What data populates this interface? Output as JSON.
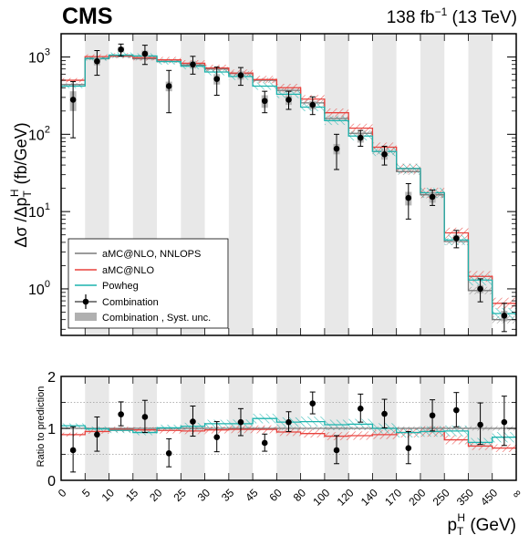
{
  "header": {
    "experiment": "CMS",
    "lumi_prefix": "138 fb",
    "lumi_exp": "−1",
    "lumi_suffix": " (13 TeV)"
  },
  "colors": {
    "nnlops": "#7a7a7a",
    "amcnlo": "#e8413c",
    "powheg": "#1bb3ad",
    "data": "#000000",
    "syst_band": "#b0b0b0",
    "vband": "#e8e8e8"
  },
  "chart_data": [
    {
      "type": "line",
      "panel": "main",
      "scale": "log",
      "ylim": [
        0.25,
        2000
      ],
      "ylabel_parts": [
        "Δσ /Δp",
        "T",
        "H",
        " (fb/GeV)"
      ],
      "yticks": [
        {
          "value": 1000,
          "label": "10",
          "exp": "3"
        },
        {
          "value": 100,
          "label": "10",
          "exp": "2"
        },
        {
          "value": 10,
          "label": "10",
          "exp": "1"
        },
        {
          "value": 1,
          "label": "10",
          "exp": "0"
        }
      ],
      "xtick_labels": [
        "0",
        "5",
        "10",
        "15",
        "20",
        "25",
        "30",
        "35",
        "45",
        "60",
        "80",
        "100",
        "120",
        "140",
        "170",
        "200",
        "250",
        "350",
        "450",
        "∞"
      ],
      "nbins": 19,
      "series": [
        {
          "name": "aMC@NLO, NNLOPS",
          "key": "nnlops",
          "values": [
            440,
            950,
            1020,
            950,
            880,
            790,
            700,
            610,
            500,
            370,
            255,
            160,
            103,
            60,
            33,
            16.5,
            4.1,
            0.95,
            0.4
          ]
        },
        {
          "name": "aMC@NLO",
          "key": "amcnlo",
          "values": [
            500,
            1010,
            1040,
            980,
            920,
            830,
            720,
            620,
            510,
            400,
            285,
            190,
            120,
            68,
            36,
            17.5,
            5.3,
            1.45,
            0.65
          ]
        },
        {
          "name": "Powheg",
          "key": "powheg",
          "values": [
            420,
            960,
            1060,
            1030,
            870,
            760,
            640,
            560,
            420,
            330,
            225,
            150,
            95,
            60,
            36,
            17.5,
            4.3,
            1.3,
            0.48
          ]
        }
      ],
      "data_points": {
        "name": "Combination",
        "values": [
          280,
          880,
          1250,
          1100,
          420,
          800,
          520,
          580,
          270,
          280,
          240,
          65,
          90,
          55,
          15,
          15.5,
          4.5,
          1.0,
          0.45
        ],
        "err_low": [
          190,
          300,
          220,
          300,
          230,
          200,
          200,
          150,
          80,
          70,
          60,
          30,
          20,
          15,
          7,
          3.5,
          1.1,
          0.32,
          0.17
        ],
        "err_high": [
          200,
          330,
          220,
          320,
          250,
          220,
          220,
          150,
          90,
          80,
          65,
          35,
          22,
          15,
          8,
          3.5,
          1.2,
          0.35,
          0.2
        ],
        "syst_low": [
          80,
          100,
          100,
          110,
          60,
          90,
          80,
          70,
          50,
          40,
          30,
          10,
          12,
          8,
          3,
          2.5,
          0.5,
          0.12,
          0.07
        ],
        "syst_high": [
          80,
          100,
          100,
          110,
          60,
          90,
          80,
          70,
          50,
          40,
          30,
          10,
          12,
          8,
          3,
          2.5,
          0.5,
          0.12,
          0.07
        ]
      },
      "legend": {
        "placement": "bottom-left",
        "entries": [
          "aMC@NLO, NNLOPS",
          "aMC@NLO",
          "Powheg",
          "Combination",
          "Combination , Syst. unc."
        ]
      }
    },
    {
      "type": "line",
      "panel": "ratio",
      "ylabel": "Ratio to prediction",
      "ylim": [
        0,
        2
      ],
      "yticks": [
        0,
        1,
        2
      ],
      "xlabel_parts": [
        "p",
        "T",
        "H",
        " (GeV)"
      ],
      "series": [
        {
          "name": "aMC@NLO, NNLOPS",
          "key": "nnlops",
          "values": [
            1,
            1,
            1,
            1,
            1,
            1,
            1,
            1,
            1,
            1,
            1,
            1,
            1,
            1,
            1,
            1,
            1,
            1,
            1
          ]
        },
        {
          "name": "aMC@NLO",
          "key": "amcnlo",
          "values": [
            0.88,
            0.94,
            0.98,
            0.97,
            0.96,
            0.95,
            0.97,
            0.98,
            0.98,
            0.93,
            0.9,
            0.85,
            0.86,
            0.88,
            0.92,
            0.94,
            0.78,
            0.66,
            0.62
          ]
        },
        {
          "name": "Powheg",
          "key": "powheg",
          "values": [
            1.05,
            0.99,
            0.96,
            0.92,
            1.01,
            1.04,
            1.09,
            1.09,
            1.19,
            1.12,
            1.13,
            1.07,
            1.08,
            1.0,
            0.92,
            0.94,
            0.95,
            0.73,
            0.83
          ]
        }
      ],
      "data_points": {
        "name": "Combination",
        "values": [
          0.58,
          0.88,
          1.27,
          1.22,
          0.52,
          1.13,
          0.83,
          1.12,
          0.72,
          1.12,
          1.48,
          0.58,
          1.38,
          1.28,
          0.62,
          1.25,
          1.35,
          1.07,
          1.12
        ],
        "err_low": [
          0.42,
          0.32,
          0.22,
          0.3,
          0.26,
          0.28,
          0.28,
          0.26,
          0.16,
          0.18,
          0.2,
          0.26,
          0.26,
          0.27,
          0.3,
          0.3,
          0.32,
          0.38,
          0.45
        ],
        "err_high": [
          0.45,
          0.34,
          0.24,
          0.32,
          0.28,
          0.3,
          0.3,
          0.26,
          0.17,
          0.2,
          0.22,
          0.28,
          0.28,
          0.28,
          0.32,
          0.3,
          0.34,
          0.42,
          0.5
        ]
      }
    }
  ]
}
